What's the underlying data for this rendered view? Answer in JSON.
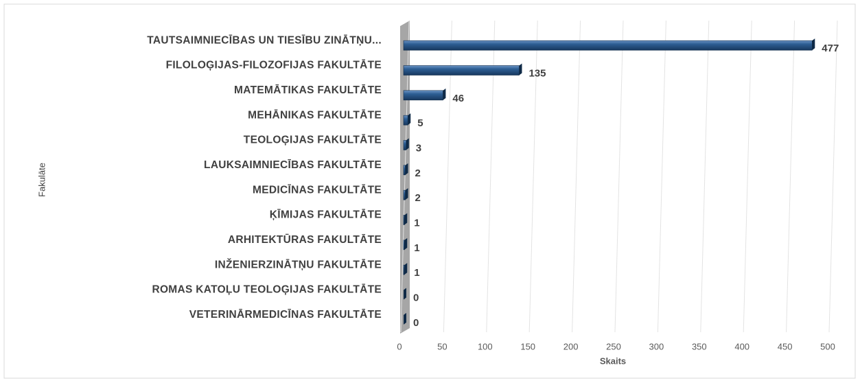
{
  "chart_data": {
    "type": "bar",
    "orientation": "horizontal",
    "categories": [
      "TAUTSAIMNIECĪBAS UN TIESĪBU  ZINĀTŅU...",
      "FILOLOĢIJAS-FILOZOFIJAS  FAKULTĀTE",
      "MATEMĀTIKAS FAKULTĀTE",
      "MEHĀNIKAS FAKULTĀTE",
      "TEOLOĢIJAS FAKULTĀTE",
      "LAUKSAIMNIECĪBAS FAKULTĀTE",
      "MEDICĪNAS FAKULTĀTE",
      "ĶĪMIJAS FAKULTĀTE",
      "ARHITEKTŪRAS FAKULTĀTE",
      "INŽENIERZINĀTŅU FAKULTĀTE",
      "ROMAS KATOĻU TEOLOĢIJAS FAKULTĀTE",
      "VETERINĀRMEDICĪNAS  FAKULTĀTE"
    ],
    "values": [
      477,
      135,
      46,
      5,
      3,
      2,
      2,
      1,
      1,
      1,
      0,
      0
    ],
    "color": "#1f4e79",
    "xlabel": "Skaits",
    "ylabel": "Fakulāte",
    "xlim": [
      0,
      500
    ],
    "xticks": [
      0,
      50,
      100,
      150,
      200,
      250,
      300,
      350,
      400,
      450,
      500
    ],
    "grid": true
  }
}
